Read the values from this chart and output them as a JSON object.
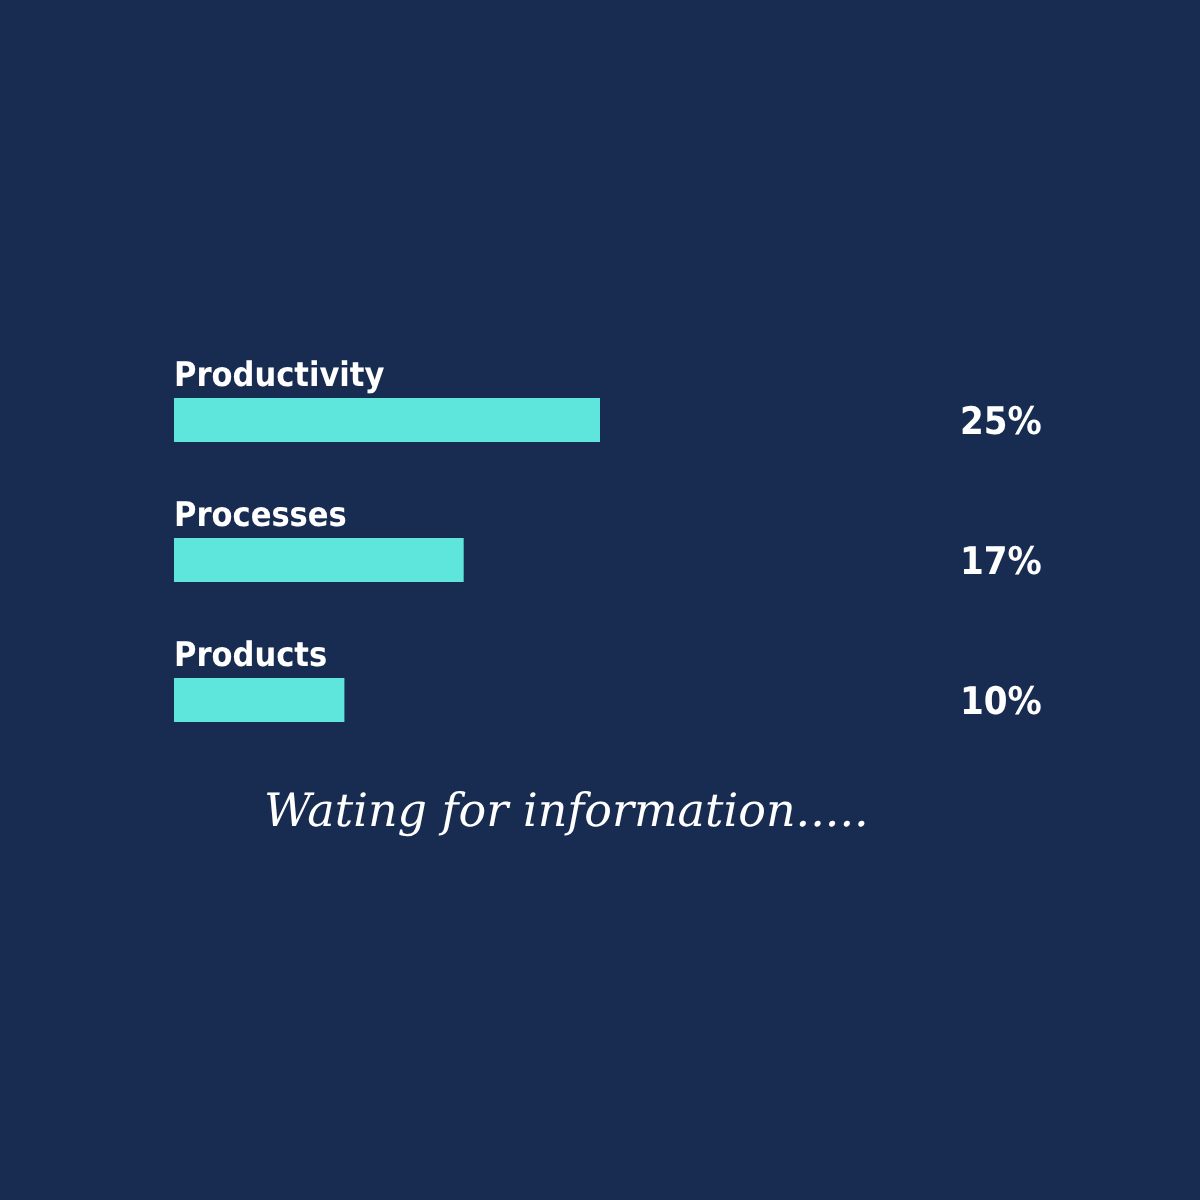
{
  "chart_data": {
    "type": "bar",
    "orientation": "horizontal",
    "categories": [
      "Productivity",
      "Processes",
      "Products"
    ],
    "values": [
      25,
      17,
      10
    ],
    "color": "#5ee6dd",
    "value_labels": [
      "25%",
      "17%",
      "10%"
    ],
    "annotations": [
      "Wating for information....."
    ],
    "grid": false,
    "legend": false
  }
}
